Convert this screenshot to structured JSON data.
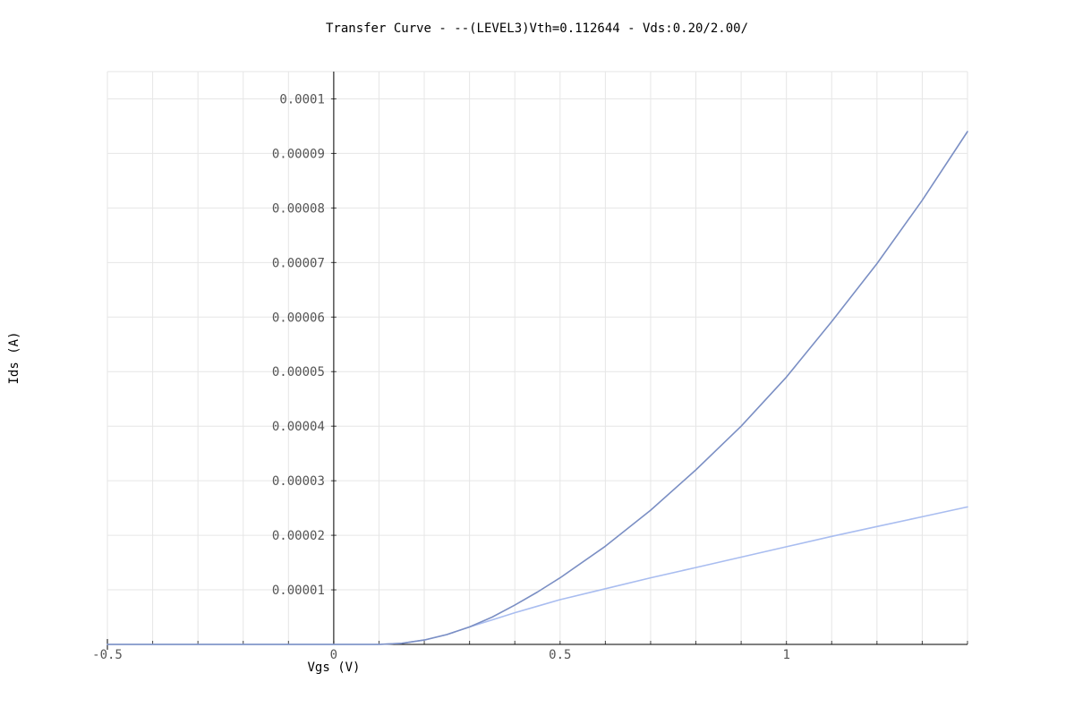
{
  "chart_data": {
    "type": "line",
    "title": "Transfer Curve - --(LEVEL3)Vth=0.112644 - Vds:0.20/2.00/",
    "xlabel": "Vgs (V)",
    "ylabel": "Ids (A)",
    "xlim": [
      -0.5,
      1.4
    ],
    "ylim": [
      0,
      0.000105
    ],
    "grid": true,
    "x_ticks": [
      -0.5,
      0,
      0.5,
      1
    ],
    "x_tick_labels": [
      "-0.5",
      "0",
      "0.5",
      "1"
    ],
    "y_ticks": [
      1e-05,
      2e-05,
      3e-05,
      4e-05,
      5e-05,
      6e-05,
      7e-05,
      8e-05,
      9e-05,
      0.0001
    ],
    "y_tick_labels": [
      "0.00001",
      "0.00002",
      "0.00003",
      "0.00004",
      "0.00005",
      "0.00006",
      "0.00007",
      "0.00008",
      "0.00009",
      "0.0001"
    ],
    "series": [
      {
        "color": "#7b8fc4",
        "x": [
          -0.5,
          0.0,
          0.1,
          0.15,
          0.2,
          0.25,
          0.3,
          0.35,
          0.4,
          0.45,
          0.5,
          0.6,
          0.7,
          0.8,
          0.9,
          1.0,
          1.1,
          1.2,
          1.3,
          1.4
        ],
        "y": [
          0,
          0,
          0,
          2e-07,
          8e-07,
          1.8e-06,
          3.2e-06,
          5e-06,
          7.2e-06,
          9.6e-06,
          1.22e-05,
          1.8e-05,
          2.46e-05,
          3.2e-05,
          4e-05,
          4.9e-05,
          5.92e-05,
          6.98e-05,
          8.14e-05,
          9.4e-05
        ]
      },
      {
        "color": "#a9bdf0",
        "x": [
          -0.5,
          0.0,
          0.1,
          0.15,
          0.2,
          0.25,
          0.3,
          0.35,
          0.4,
          0.45,
          0.5,
          0.6,
          0.7,
          0.8,
          0.9,
          1.0,
          1.1,
          1.2,
          1.3,
          1.4
        ],
        "y": [
          0,
          0,
          0,
          2e-07,
          8e-07,
          1.8e-06,
          3.2e-06,
          4.5e-06,
          5.8e-06,
          7e-06,
          8.2e-06,
          1.02e-05,
          1.22e-05,
          1.41e-05,
          1.6e-05,
          1.79e-05,
          1.98e-05,
          2.16e-05,
          2.34e-05,
          2.52e-05
        ]
      }
    ]
  }
}
